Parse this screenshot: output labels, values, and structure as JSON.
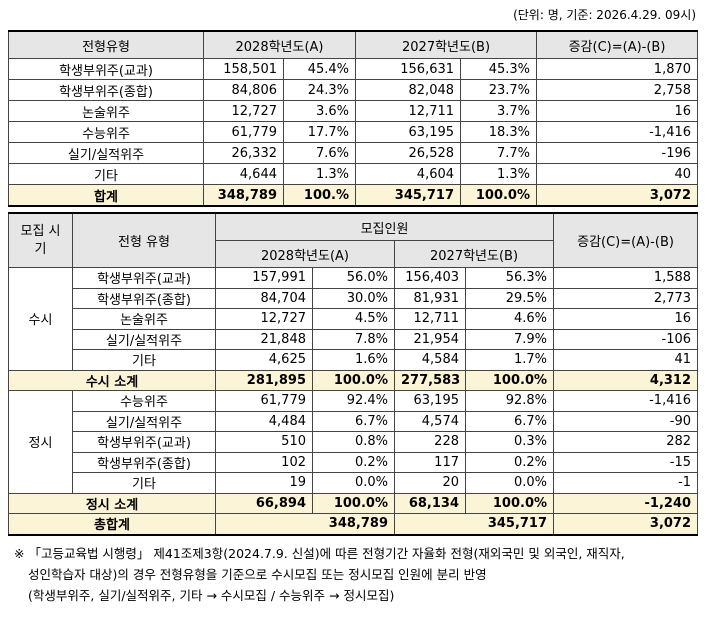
{
  "unit_note": "(단위: 명, 기준: 2026.4.29. 09시)",
  "table1": {
    "headers": [
      "전형유형",
      "2028학년도(A)",
      "2027학년도(B)",
      "증감(C)=(A)-(B)"
    ],
    "rows": [
      [
        "학생부위주(교과)",
        "158,501",
        "45.4%",
        "156,631",
        "45.3%",
        "1,870"
      ],
      [
        "학생부위주(종합)",
        "84,806",
        "24.3%",
        "82,048",
        "23.7%",
        "2,758"
      ],
      [
        "논술위주",
        "12,727",
        "3.6%",
        "12,711",
        "3.7%",
        "16"
      ],
      [
        "수능위주",
        "61,779",
        "17.7%",
        "63,195",
        "18.3%",
        "-1,416"
      ],
      [
        "실기/실적위주",
        "26,332",
        "7.6%",
        "26,528",
        "7.7%",
        "-196"
      ],
      [
        "기타",
        "4,644",
        "1.3%",
        "4,604",
        "1.3%",
        "40"
      ]
    ],
    "total": [
      "합계",
      "348,789",
      "100.%",
      "345,717",
      "100.0%",
      "3,072"
    ]
  },
  "table2": {
    "headers": {
      "period": "모집 시기",
      "type": "전형 유형",
      "count": "모집인원",
      "a": "2028학년도(A)",
      "b": "2027학년도(B)",
      "diff": "증감(C)=(A)-(B)"
    },
    "groups": [
      {
        "name": "수시",
        "rows": [
          [
            "학생부위주(교과)",
            "157,991",
            "56.0%",
            "156,403",
            "56.3%",
            "1,588"
          ],
          [
            "학생부위주(종합)",
            "84,704",
            "30.0%",
            "81,931",
            "29.5%",
            "2,773"
          ],
          [
            "논술위주",
            "12,727",
            "4.5%",
            "12,711",
            "4.6%",
            "16"
          ],
          [
            "실기/실적위주",
            "21,848",
            "7.8%",
            "21,954",
            "7.9%",
            "-106"
          ],
          [
            "기타",
            "4,625",
            "1.6%",
            "4,584",
            "1.7%",
            "41"
          ]
        ],
        "subtotal": [
          "수시 소계",
          "281,895",
          "100.0%",
          "277,583",
          "100.0%",
          "4,312"
        ]
      },
      {
        "name": "정시",
        "rows": [
          [
            "수능위주",
            "61,779",
            "92.4%",
            "63,195",
            "92.8%",
            "-1,416"
          ],
          [
            "실기/실적위주",
            "4,484",
            "6.7%",
            "4,574",
            "6.7%",
            "-90"
          ],
          [
            "학생부위주(교과)",
            "510",
            "0.8%",
            "228",
            "0.3%",
            "282"
          ],
          [
            "학생부위주(종합)",
            "102",
            "0.2%",
            "117",
            "0.2%",
            "-15"
          ],
          [
            "기타",
            "19",
            "0.0%",
            "20",
            "0.0%",
            "-1"
          ]
        ],
        "subtotal": [
          "정시 소계",
          "66,894",
          "100.0%",
          "68,134",
          "100.0%",
          "-1,240"
        ]
      }
    ],
    "grand_total": [
      "총합계",
      "348,789",
      "345,717",
      "3,072"
    ]
  },
  "footnote": [
    "※ 「고등교육법 시행령」 제41조제3항(2024.7.9. 신설)에 따른 전형기간 자율화 전형(재외국민 및 외국인, 재직자,",
    "성인학습자 대상)의 경우 전형유형을 기준으로 수시모집 또는 정시모집 인원에 분리 반영",
    "(학생부위주, 실기/실적위주, 기타 → 수시모집 / 수능위주 → 정시모집)"
  ]
}
